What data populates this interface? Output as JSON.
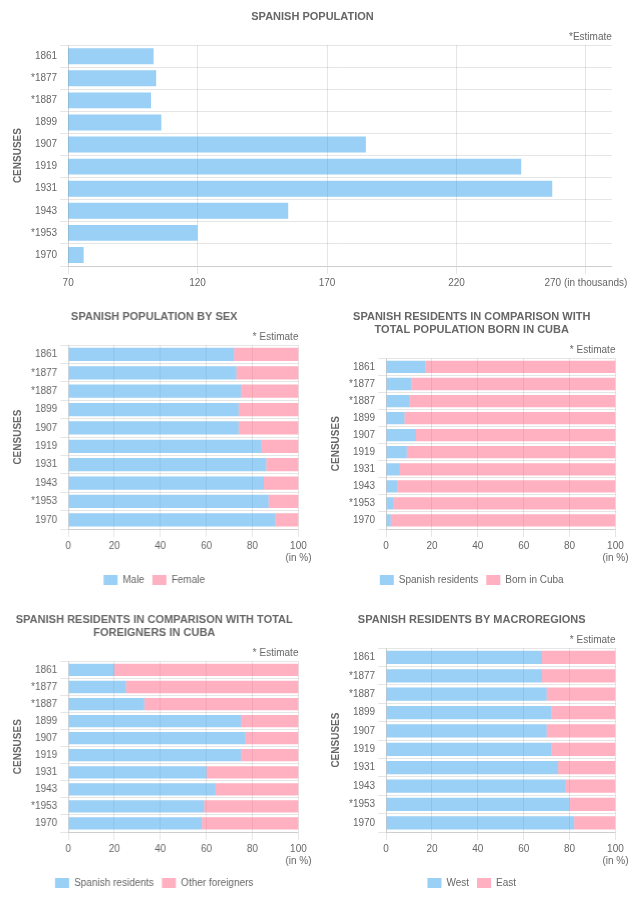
{
  "chart_data": [
    {
      "type": "bar",
      "orientation": "horizontal",
      "title": "SPANISH POPULATION",
      "ylabel": "CENSUSES",
      "annotations": [
        "*Estimate"
      ],
      "categories": [
        "1861",
        "*1877",
        "*1887",
        "1899",
        "1907",
        "1919",
        "1931",
        "1943",
        "*1953",
        "1970"
      ],
      "values": [
        103,
        104,
        102,
        106,
        185,
        245,
        257,
        155,
        120,
        76
      ],
      "xlim": [
        70,
        280
      ],
      "xticks": [
        70,
        120,
        170,
        220,
        {
          "value": 270,
          "label": "270 (in thousands)"
        }
      ],
      "grid": true
    },
    {
      "type": "bar",
      "orientation": "horizontal",
      "stacked": true,
      "title": "SPANISH POPULATION BY SEX",
      "ylabel": "CENSUSES",
      "annotations": [
        "* Estimate"
      ],
      "categories": [
        "1861",
        "*1877",
        "*1887",
        "1899",
        "1907",
        "1919",
        "1931",
        "1943",
        "*1953",
        "1970"
      ],
      "series": [
        {
          "name": "Male",
          "values": [
            72,
            73,
            75,
            74,
            74,
            84,
            86,
            85,
            87,
            90
          ]
        },
        {
          "name": "Female",
          "values": [
            28,
            27,
            25,
            26,
            26,
            16,
            14,
            15,
            13,
            10
          ]
        }
      ],
      "xlim": [
        0,
        100
      ],
      "xticks": [
        0,
        20,
        40,
        60,
        80,
        {
          "value": 100,
          "label": "100\n(in %)"
        }
      ],
      "grid": true,
      "legend": "bottom"
    },
    {
      "type": "bar",
      "orientation": "horizontal",
      "stacked": true,
      "title": "SPANISH RESIDENTS IN COMPARISON WITH\nTOTAL POPULATION BORN IN CUBA",
      "ylabel": "CENSUSES",
      "annotations": [
        "* Estimate"
      ],
      "categories": [
        "1861",
        "*1877",
        "*1887",
        "1899",
        "1907",
        "1919",
        "1931",
        "1943",
        "*1953",
        "1970"
      ],
      "series": [
        {
          "name": "Spanish\nresidents",
          "values": [
            17,
            11,
            10,
            8,
            13,
            9,
            6,
            5,
            3,
            2
          ]
        },
        {
          "name": "Born in\nCuba",
          "values": [
            83,
            89,
            90,
            92,
            87,
            91,
            94,
            95,
            97,
            98
          ]
        }
      ],
      "xlim": [
        0,
        100
      ],
      "xticks": [
        0,
        20,
        40,
        60,
        80,
        {
          "value": 100,
          "label": "100\n(in %)"
        }
      ],
      "grid": true,
      "legend": "bottom"
    },
    {
      "type": "bar",
      "orientation": "horizontal",
      "stacked": true,
      "title": "SPANISH RESIDENTS IN COMPARISON WITH TOTAL\nFOREIGNERS IN CUBA",
      "ylabel": "CENSUSES",
      "annotations": [
        "* Estimate"
      ],
      "categories": [
        "1861",
        "*1877",
        "*1887",
        "1899",
        "1907",
        "1919",
        "1931",
        "1943",
        "*1953",
        "1970"
      ],
      "series": [
        {
          "name": "Spanish\nresidents",
          "values": [
            20,
            25,
            33,
            75,
            77,
            75,
            60,
            64,
            59,
            58
          ]
        },
        {
          "name": "Other\nforeigners",
          "values": [
            80,
            75,
            67,
            25,
            23,
            25,
            40,
            36,
            41,
            42
          ]
        }
      ],
      "xlim": [
        0,
        100
      ],
      "xticks": [
        0,
        20,
        40,
        60,
        80,
        {
          "value": 100,
          "label": "100\n(in %)"
        }
      ],
      "grid": true,
      "legend": "bottom"
    },
    {
      "type": "bar",
      "orientation": "horizontal",
      "stacked": true,
      "title": "SPANISH RESIDENTS BY MACROREGIONS",
      "ylabel": "CENSUSES",
      "annotations": [
        "* Estimate"
      ],
      "categories": [
        "1861",
        "*1877",
        "*1887",
        "1899",
        "1907",
        "1919",
        "1931",
        "1943",
        "*1953",
        "1970"
      ],
      "series": [
        {
          "name": "West",
          "values": [
            68,
            68,
            70,
            72,
            70,
            72,
            75,
            78,
            80,
            82
          ]
        },
        {
          "name": "East",
          "values": [
            32,
            32,
            30,
            28,
            30,
            28,
            25,
            22,
            20,
            18
          ]
        }
      ],
      "xlim": [
        0,
        100
      ],
      "xticks": [
        0,
        20,
        40,
        60,
        80,
        {
          "value": 100,
          "label": "100\n(in %)"
        }
      ],
      "grid": true,
      "legend": "bottom"
    }
  ]
}
